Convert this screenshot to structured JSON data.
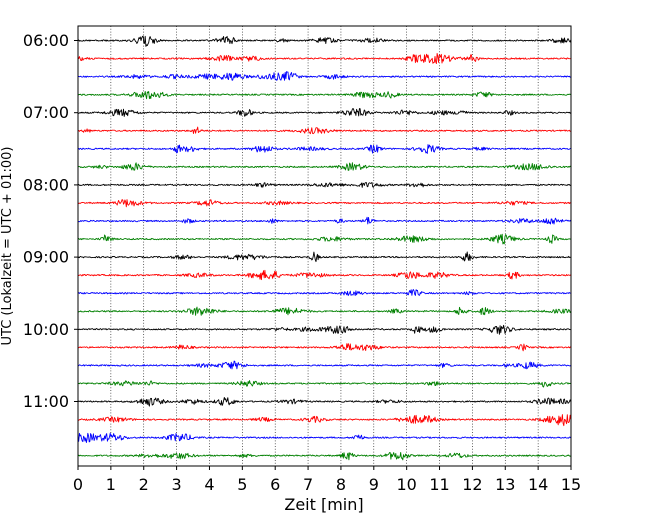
{
  "chart_data": {
    "type": "line",
    "title": "",
    "xlabel": "Zeit  [min]",
    "ylabel": "UTC (Lokalzeit = UTC + 01:00)",
    "xlim": [
      0,
      15
    ],
    "x_ticks": [
      "0",
      "1",
      "2",
      "3",
      "4",
      "5",
      "6",
      "7",
      "8",
      "9",
      "10",
      "11",
      "12",
      "13",
      "14",
      "15"
    ],
    "y_ticks": [
      "06:00",
      "07:00",
      "08:00",
      "09:00",
      "10:00",
      "11:00"
    ],
    "grid": "vertical dotted at each minute",
    "row_colors": [
      "#000000",
      "#ff0000",
      "#0000ff",
      "#008000"
    ],
    "rows": [
      {
        "start": "06:00",
        "color": "#000000"
      },
      {
        "start": "06:15",
        "color": "#ff0000"
      },
      {
        "start": "06:30",
        "color": "#0000ff"
      },
      {
        "start": "06:45",
        "color": "#008000"
      },
      {
        "start": "07:00",
        "color": "#000000"
      },
      {
        "start": "07:15",
        "color": "#ff0000"
      },
      {
        "start": "07:30",
        "color": "#0000ff"
      },
      {
        "start": "07:45",
        "color": "#008000"
      },
      {
        "start": "08:00",
        "color": "#000000"
      },
      {
        "start": "08:15",
        "color": "#ff0000"
      },
      {
        "start": "08:30",
        "color": "#0000ff"
      },
      {
        "start": "08:45",
        "color": "#008000"
      },
      {
        "start": "09:00",
        "color": "#000000"
      },
      {
        "start": "09:15",
        "color": "#ff0000"
      },
      {
        "start": "09:30",
        "color": "#0000ff"
      },
      {
        "start": "09:45",
        "color": "#008000"
      },
      {
        "start": "10:00",
        "color": "#000000"
      },
      {
        "start": "10:15",
        "color": "#ff0000"
      },
      {
        "start": "10:30",
        "color": "#0000ff"
      },
      {
        "start": "10:45",
        "color": "#008000"
      },
      {
        "start": "11:00",
        "color": "#000000"
      },
      {
        "start": "11:15",
        "color": "#ff0000"
      },
      {
        "start": "11:30",
        "color": "#0000ff"
      },
      {
        "start": "11:45",
        "color": "#008000"
      }
    ]
  }
}
